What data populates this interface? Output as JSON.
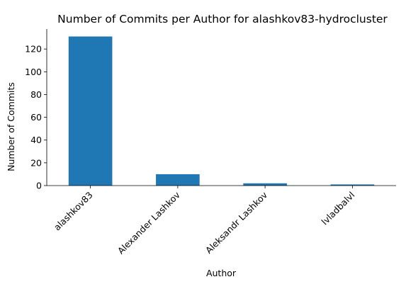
{
  "chart_data": {
    "type": "bar",
    "title": "Number of Commits per Author for alashkov83-hydrocluster",
    "xlabel": "Author",
    "ylabel": "Number of Commits",
    "categories": [
      "alashkov83",
      "Alexander Lashkov",
      "Aleksandr Lashkov",
      "lvladbalvl"
    ],
    "values": [
      131,
      10,
      2,
      1
    ],
    "ylim": [
      0,
      137.55
    ],
    "yticks": [
      0,
      20,
      40,
      60,
      80,
      100,
      120
    ],
    "grid": false,
    "legend": "none",
    "bar_color": "#1f77b4"
  }
}
